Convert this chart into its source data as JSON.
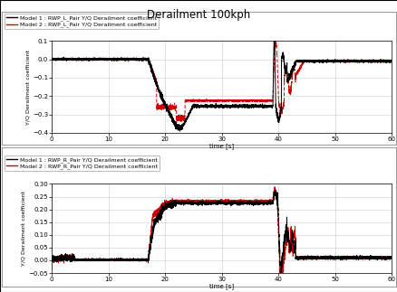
{
  "title": "Derailment 100kph",
  "subplot1": {
    "legend1": "Model 1 : RWP_L_Pair Y/Q Derailment coefficient",
    "legend2": "Model 2 : RWP_L_Pair Y/Q Derailment coefficient",
    "ylabel": "Y/Q Derailment coefficient",
    "xlabel": "time [s]",
    "ylim": [
      -0.4,
      0.1
    ],
    "xlim": [
      0,
      60
    ],
    "yticks": [
      0.1,
      0.0,
      -0.1,
      -0.2,
      -0.3,
      -0.4
    ],
    "xticks": [
      0,
      10,
      20,
      30,
      40,
      50,
      60
    ]
  },
  "subplot2": {
    "legend1": "Model 1 : RWP_R_Pair Y/Q Derailment coefficient",
    "legend2": "Model 2 : RWP_R_Pair Y/Q Derailment coefficient",
    "ylabel": "Y/Q Derailment coefficient",
    "xlabel": "time [s]",
    "ylim": [
      -0.05,
      0.3
    ],
    "xlim": [
      0,
      60
    ],
    "yticks": [
      -0.05,
      0.0,
      0.05,
      0.1,
      0.15,
      0.2,
      0.25,
      0.3
    ],
    "xticks": [
      0,
      10,
      20,
      30,
      40,
      50,
      60
    ]
  },
  "color_model1": "#000000",
  "color_model2": "#cc0000",
  "linewidth": 0.7,
  "background_color": "#ffffff",
  "grid_color": "#cccccc"
}
